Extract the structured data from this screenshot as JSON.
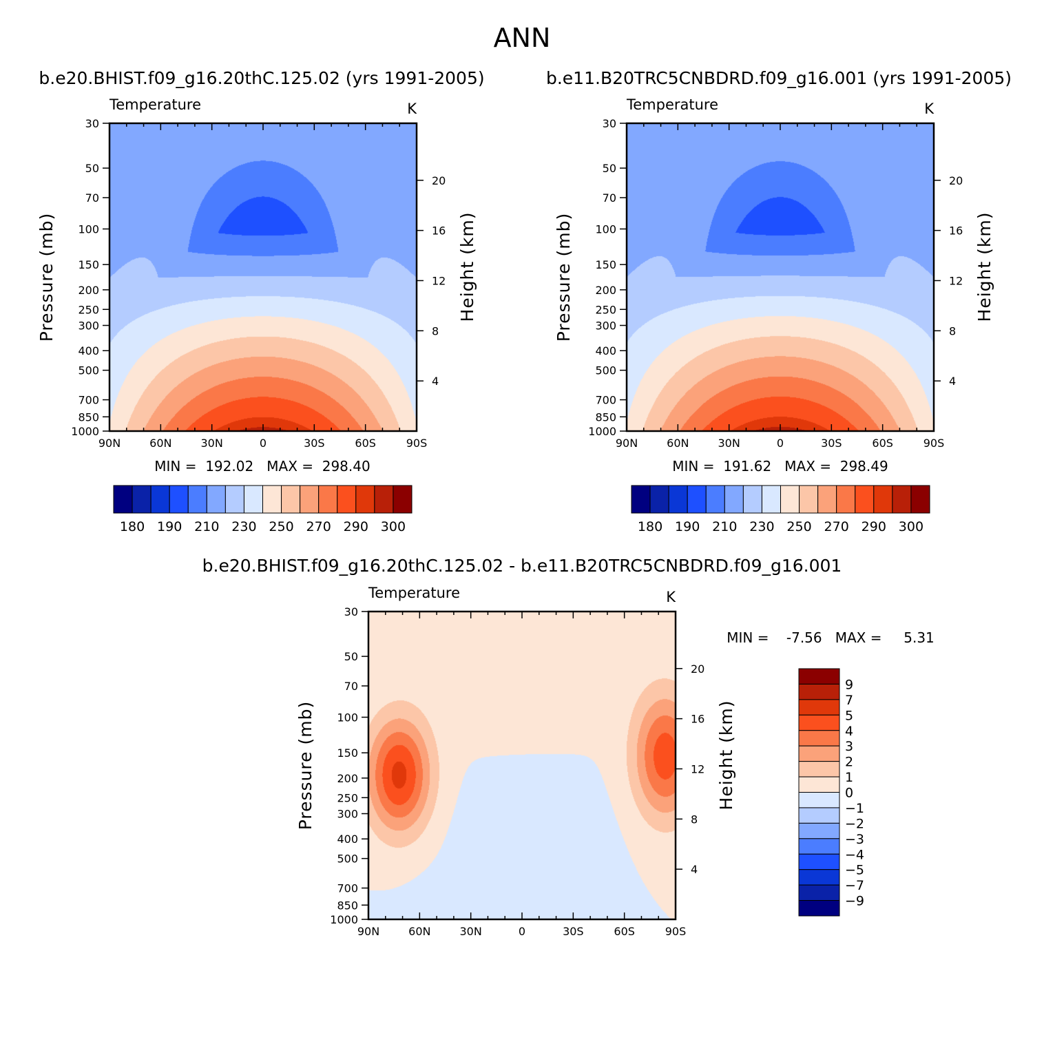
{
  "chart_data": {
    "title": "ANN",
    "panels": [
      {
        "id": "p1",
        "type": "contour",
        "subtitle": "b.e20.BHIST.f09_g16.20thC.125.02 (yrs 1991-2005)",
        "left_label": "Temperature",
        "right_label": "K",
        "ylabel": "Pressure (mb)",
        "y2label": "Height (km)",
        "x_ticks": [
          "90N",
          "60N",
          "30N",
          "0",
          "30S",
          "60S",
          "90S"
        ],
        "x_range": [
          90,
          -90
        ],
        "pressure_ticks": [
          30,
          50,
          70,
          100,
          150,
          200,
          250,
          300,
          400,
          500,
          700,
          850,
          1000
        ],
        "height_ticks": [
          20,
          16,
          12,
          8,
          4
        ],
        "ylim": [
          30,
          1000
        ],
        "stats": "MIN =  192.02   MAX =  298.40",
        "min": 192.02,
        "max": 298.4,
        "field": "temperature"
      },
      {
        "id": "p2",
        "type": "contour",
        "subtitle": "b.e11.B20TRC5CNBDRD.f09_g16.001 (yrs 1991-2005)",
        "left_label": "Temperature",
        "right_label": "K",
        "ylabel": "Pressure (mb)",
        "y2label": "Height (km)",
        "x_ticks": [
          "90N",
          "60N",
          "30N",
          "0",
          "30S",
          "60S",
          "90S"
        ],
        "x_range": [
          90,
          -90
        ],
        "pressure_ticks": [
          30,
          50,
          70,
          100,
          150,
          200,
          250,
          300,
          400,
          500,
          700,
          850,
          1000
        ],
        "height_ticks": [
          20,
          16,
          12,
          8,
          4
        ],
        "ylim": [
          30,
          1000
        ],
        "stats": "MIN =  191.62   MAX =  298.49",
        "min": 191.62,
        "max": 298.49,
        "field": "temperature"
      },
      {
        "id": "p3",
        "type": "contour",
        "subtitle": "b.e20.BHIST.f09_g16.20thC.125.02 - b.e11.B20TRC5CNBDRD.f09_g16.001",
        "left_label": "Temperature",
        "right_label": "K",
        "ylabel": "Pressure (mb)",
        "y2label": "Height (km)",
        "x_ticks": [
          "90N",
          "60N",
          "30N",
          "0",
          "30S",
          "60S",
          "90S"
        ],
        "x_range": [
          90,
          -90
        ],
        "pressure_ticks": [
          30,
          50,
          70,
          100,
          150,
          200,
          250,
          300,
          400,
          500,
          700,
          850,
          1000
        ],
        "height_ticks": [
          20,
          16,
          12,
          8,
          4
        ],
        "ylim": [
          30,
          1000
        ],
        "stats": "MIN =    -7.56   MAX =     5.31",
        "min": -7.56,
        "max": 5.31,
        "field": "difference"
      }
    ],
    "colorbar_abs": {
      "orientation": "horizontal",
      "colors": [
        "#000080",
        "#0a22a8",
        "#0a37d6",
        "#1e50ff",
        "#4b7dff",
        "#82a8ff",
        "#b4ccff",
        "#d9e8ff",
        "#fde6d6",
        "#fcc6a8",
        "#fba27a",
        "#fa7848",
        "#fb501e",
        "#e0380a",
        "#b82008",
        "#8b0000"
      ],
      "labels": [
        "180",
        "190",
        "210",
        "230",
        "250",
        "270",
        "290",
        "300"
      ],
      "levels": [
        180,
        185,
        190,
        200,
        210,
        220,
        230,
        240,
        250,
        260,
        270,
        280,
        290,
        295,
        300
      ]
    },
    "colorbar_diff": {
      "orientation": "vertical",
      "colors": [
        "#8b0000",
        "#b82008",
        "#e0380a",
        "#fb501e",
        "#fa7848",
        "#fba27a",
        "#fcc6a8",
        "#fde6d6",
        "#d9e8ff",
        "#b4ccff",
        "#82a8ff",
        "#4b7dff",
        "#1e50ff",
        "#0a37d6",
        "#0a22a8",
        "#000080"
      ],
      "labels": [
        "9",
        "7",
        "5",
        "4",
        "3",
        "2",
        "1",
        "0",
        "-1",
        "-2",
        "-3",
        "-4",
        "-5",
        "-7",
        "-9"
      ],
      "levels": [
        9,
        7,
        5,
        4,
        3,
        2,
        1,
        0,
        -1,
        -2,
        -3,
        -4,
        -5,
        -7,
        -9
      ]
    }
  }
}
